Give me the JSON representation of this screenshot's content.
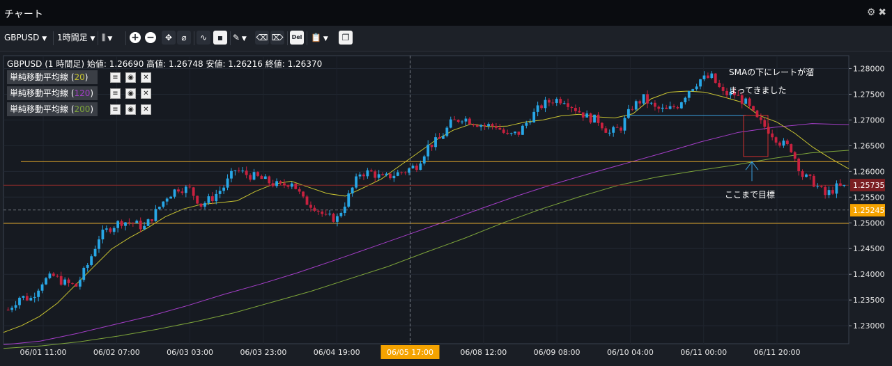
{
  "window": {
    "title": "チャート",
    "icons": [
      "gear-icon",
      "close-icon"
    ]
  },
  "toolbar": {
    "symbol": "GBPUSD",
    "timeframe": "1時間足",
    "icons": [
      "chart-type-icon",
      "zoom-in-icon",
      "zoom-out-icon",
      "crosshair-icon",
      "magnet-icon",
      "indicator-icon",
      "save-icon",
      "draw-pen-icon",
      "eraser-icon",
      "eraser-all-icon",
      "delete-icon",
      "clipboard-icon",
      "window-icon"
    ],
    "delete_label": "Del"
  },
  "chart_info": "GBPUSD (1 時間足) 始値: 1.26690 高値: 1.26748 安値: 1.26216 終値: 1.26370",
  "indicators": [
    {
      "label": "単純移動平均線",
      "param": "20",
      "color": "#c9c431"
    },
    {
      "label": "単純移動平均線",
      "param": "120",
      "color": "#a53ec9"
    },
    {
      "label": "単純移動平均線",
      "param": "200",
      "color": "#7ea63a"
    }
  ],
  "annotations": {
    "note_line1": "SMAの下にレートが溜",
    "note_line2": "まってきました",
    "target_label": "ここまで目標"
  },
  "colors": {
    "background": "#1a1e25",
    "up_candle": "#28a7e6",
    "down_candle": "#c8213f",
    "sma20": "#c9c431",
    "sma120": "#a53ec9",
    "sma200": "#7ea63a",
    "hline": "#e0a62a",
    "current_price_bg": "#7a1e22",
    "marker_bg": "#f5a300"
  },
  "chart_data": {
    "type": "candlestick",
    "symbol": "GBPUSD",
    "ylim": [
      1.2265,
      1.2825
    ],
    "y_ticks": [
      "1.28000",
      "1.27500",
      "1.27000",
      "1.26500",
      "1.26000",
      "1.25500",
      "1.25000",
      "1.24500",
      "1.24000",
      "1.23500",
      "1.23000"
    ],
    "x_ticks": [
      "06/01 11:00",
      "06/02 07:00",
      "06/03 03:00",
      "06/03 23:00",
      "06/04 19:00",
      "06/05 17:00",
      "06/08 12:00",
      "06/09 08:00",
      "06/10 04:00",
      "06/11 00:00",
      "06/11 20:00"
    ],
    "crosshair_x": "06/05 17:00",
    "current_price": "1.25735",
    "crosshair_price": "1.25245",
    "horizontal_lines": [
      1.2619,
      1.2499,
      1.2573
    ],
    "dashed_line": 1.2525,
    "price_path": [
      1.2331,
      1.2356,
      1.2353,
      1.2386,
      1.2396,
      1.2383,
      1.2377,
      1.2418,
      1.2472,
      1.2491,
      1.2503,
      1.25,
      1.2491,
      1.2521,
      1.2552,
      1.2568,
      1.2565,
      1.2535,
      1.2549,
      1.257,
      1.2603,
      1.2594,
      1.2588,
      1.2579,
      1.2571,
      1.2581,
      1.2544,
      1.2532,
      1.251,
      1.2509,
      1.2552,
      1.2597,
      1.2598,
      1.2586,
      1.2594,
      1.2601,
      1.2612,
      1.2649,
      1.2662,
      1.2693,
      1.2705,
      1.2696,
      1.2689,
      1.2689,
      1.2668,
      1.2675,
      1.2704,
      1.2728,
      1.2739,
      1.274,
      1.2722,
      1.2706,
      1.2699,
      1.2674,
      1.2686,
      1.2726,
      1.2742,
      1.2722,
      1.2718,
      1.2729,
      1.2759,
      1.2779,
      1.2783,
      1.2751,
      1.275,
      1.2733,
      1.27,
      1.2681,
      1.2657,
      1.2644,
      1.2592,
      1.2578,
      1.2554,
      1.2569
    ],
    "sma20": [
      1.2287,
      1.23,
      1.2318,
      1.2344,
      1.2379,
      1.2414,
      1.2449,
      1.2471,
      1.249,
      1.2512,
      1.2527,
      1.2536,
      1.2539,
      1.2543,
      1.2561,
      1.2575,
      1.2581,
      1.2569,
      1.2557,
      1.2552,
      1.2568,
      1.2585,
      1.261,
      1.2635,
      1.266,
      1.268,
      1.2692,
      1.2687,
      1.2688,
      1.2696,
      1.27,
      1.2708,
      1.2711,
      1.2706,
      1.2704,
      1.2712,
      1.2741,
      1.2754,
      1.2756,
      1.2754,
      1.2745,
      1.2735,
      1.2709,
      1.2696,
      1.2674,
      1.2647,
      1.2625,
      1.2605
    ],
    "sma120": [
      1.2263,
      1.227,
      1.2285,
      1.2302,
      1.2319,
      1.2339,
      1.2361,
      1.2381,
      1.2403,
      1.2427,
      1.2452,
      1.2477,
      1.2502,
      1.2528,
      1.2553,
      1.2576,
      1.2597,
      1.2617,
      1.2637,
      1.2658,
      1.2676,
      1.2686,
      1.2693,
      1.2691
    ],
    "sma200": [
      1.2256,
      1.2261,
      1.2269,
      1.228,
      1.2293,
      1.2308,
      1.2325,
      1.2346,
      1.2367,
      1.2391,
      1.2415,
      1.2443,
      1.247,
      1.25,
      1.2527,
      1.2551,
      1.2573,
      1.2589,
      1.2601,
      1.2612,
      1.2625,
      1.2636,
      1.2641
    ],
    "marked_box": {
      "from": "06/11 11:00",
      "to": "06/11 15:00",
      "low": 1.2629,
      "high": 1.2709
    },
    "resistance_line": {
      "from": "06/10 06:00",
      "to": "06/11 10:00",
      "value": 1.2709
    },
    "target_price": 1.2619
  }
}
